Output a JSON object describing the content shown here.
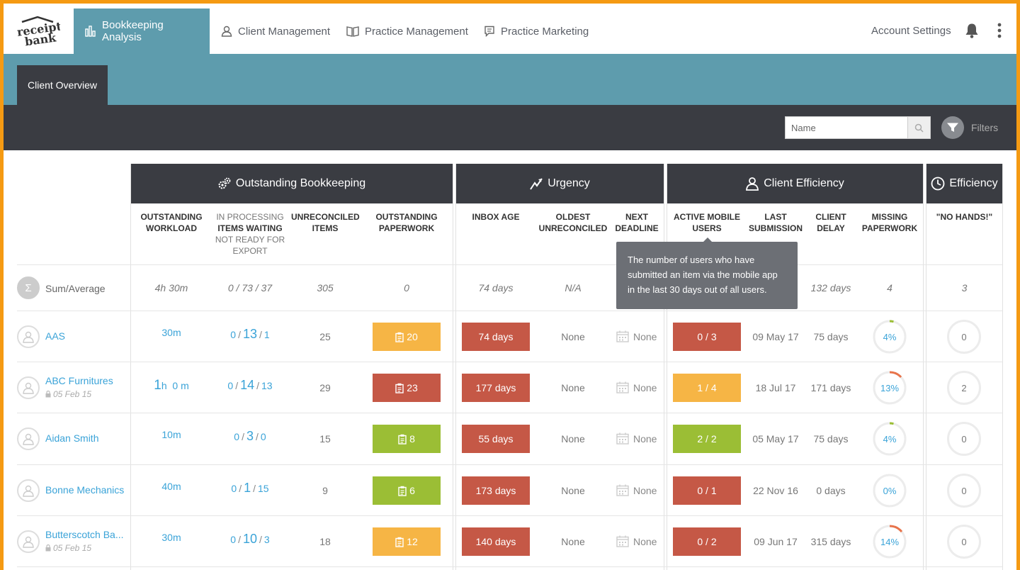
{
  "brand": {
    "logo_line1": "receipt",
    "logo_line2": "bank",
    "accent": "#5e9cad",
    "dark": "#3a3c42",
    "frame": "#f59a12"
  },
  "nav": {
    "items": [
      {
        "label": "Bookkeeping Analysis",
        "icon": "bar-chart-icon",
        "active": true
      },
      {
        "label": "Client Management",
        "icon": "user-icon"
      },
      {
        "label": "Practice Management",
        "icon": "book-icon"
      },
      {
        "label": "Practice Marketing",
        "icon": "message-icon"
      }
    ],
    "account_settings": "Account Settings"
  },
  "subnav": {
    "tab": "Client Overview"
  },
  "toolbar": {
    "search_placeholder": "Name",
    "filters_label": "Filters"
  },
  "groups": {
    "outstanding": "Outstanding Bookkeeping",
    "urgency": "Urgency",
    "client_efficiency": "Client Efficiency",
    "efficiency": "Efficiency"
  },
  "columns": {
    "workload": [
      "OUTSTANDING",
      "WORKLOAD"
    ],
    "waiting_pre": "IN PROCESSING",
    "waiting": "ITEMS WAITING",
    "waiting_post": [
      "NOT READY FOR",
      "EXPORT"
    ],
    "unreconciled": [
      "UNRECONCILED",
      "ITEMS"
    ],
    "paperwork": [
      "OUTSTANDING",
      "PAPERWORK"
    ],
    "inbox_age": "INBOX AGE",
    "oldest": [
      "OLDEST",
      "UNRECONCILED"
    ],
    "deadline": [
      "NEXT",
      "DEADLINE"
    ],
    "mobile": [
      "ACTIVE MOBILE",
      "USERS"
    ],
    "last_sub": [
      "LAST",
      "SUBMISSION"
    ],
    "delay": [
      "CLIENT",
      "DELAY"
    ],
    "missing": [
      "MISSING",
      "PAPERWORK"
    ],
    "nohands": "\"NO HANDS!\""
  },
  "summary": {
    "label": "Sum/Average",
    "symbol": "Σ",
    "workload": "4h 30m",
    "items": "0 / 73 / 37",
    "unreconciled": "305",
    "paperwork": "0",
    "inbox": "74 days",
    "oldest": "N/A",
    "delay": "132 days",
    "missing": "4",
    "nohands": "3"
  },
  "tooltip": "The number of users who have submitted an item via the mobile app in the last 30 days out of all users.",
  "rows": [
    {
      "name": "AAS",
      "date": "",
      "workload_main": "30m",
      "workload_suffix": "",
      "proc": "0",
      "wait": "13",
      "notready": "1",
      "unreconciled": "25",
      "paperwork": "20",
      "paperwork_status": "orange",
      "inbox": "74 days",
      "oldest": "None",
      "deadline": "None",
      "mobile": "0 / 3",
      "mobile_status": "red",
      "last": "09 May 17",
      "delay": "75 days",
      "missing": "4%",
      "missing_pct": 4,
      "nohands": "0"
    },
    {
      "name": "ABC Furnitures",
      "date": "05 Feb 15",
      "workload_main": "1",
      "workload_suffix": "h  0 m",
      "proc": "0",
      "wait": "14",
      "notready": "13",
      "unreconciled": "29",
      "paperwork": "23",
      "paperwork_status": "red",
      "inbox": "177 days",
      "oldest": "None",
      "deadline": "None",
      "mobile": "1 / 4",
      "mobile_status": "orange",
      "last": "18 Jul 17",
      "delay": "171 days",
      "missing": "13%",
      "missing_pct": 13,
      "nohands": "2"
    },
    {
      "name": "Aidan Smith",
      "date": "",
      "workload_main": "10m",
      "workload_suffix": "",
      "proc": "0",
      "wait": "3",
      "notready": "0",
      "unreconciled": "15",
      "paperwork": "8",
      "paperwork_status": "green",
      "inbox": "55 days",
      "oldest": "None",
      "deadline": "None",
      "mobile": "2 / 2",
      "mobile_status": "green",
      "last": "05 May 17",
      "delay": "75 days",
      "missing": "4%",
      "missing_pct": 4,
      "nohands": "0"
    },
    {
      "name": "Bonne Mechanics",
      "date": "",
      "workload_main": "40m",
      "workload_suffix": "",
      "proc": "0",
      "wait": "1",
      "notready": "15",
      "unreconciled": "9",
      "paperwork": "6",
      "paperwork_status": "green",
      "inbox": "173 days",
      "oldest": "None",
      "deadline": "None",
      "mobile": "0 / 1",
      "mobile_status": "red",
      "last": "22 Nov 16",
      "delay": "0 days",
      "missing": "0%",
      "missing_pct": 0,
      "nohands": "0"
    },
    {
      "name": "Butterscotch Ba...",
      "date": "05 Feb 15",
      "workload_main": "30m",
      "workload_suffix": "",
      "proc": "0",
      "wait": "10",
      "notready": "3",
      "unreconciled": "18",
      "paperwork": "12",
      "paperwork_status": "orange",
      "inbox": "140 days",
      "oldest": "None",
      "deadline": "None",
      "mobile": "0 / 2",
      "mobile_status": "red",
      "last": "09 Jun 17",
      "delay": "315 days",
      "missing": "14%",
      "missing_pct": 14,
      "nohands": "0"
    }
  ]
}
